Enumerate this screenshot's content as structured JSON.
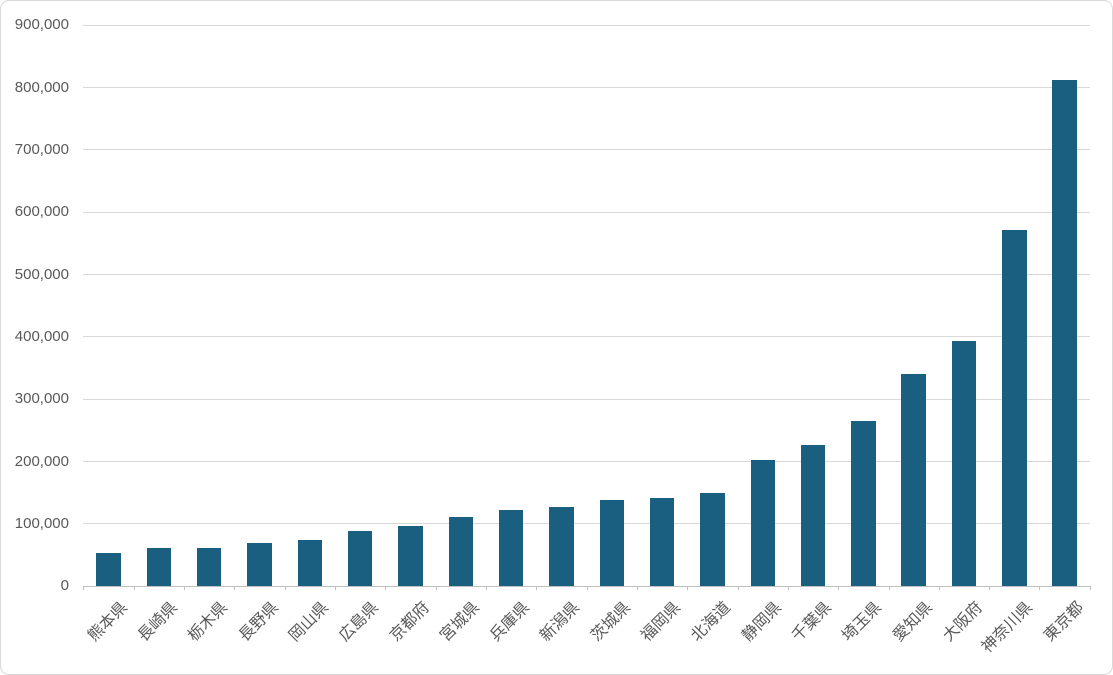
{
  "window": {
    "background": "#FFFFFF",
    "border_color": "#D9D9D9"
  },
  "chart_data": {
    "type": "bar",
    "title": "",
    "xlabel": "",
    "ylabel": "",
    "categories": [
      "熊本県",
      "長崎県",
      "栃木県",
      "長野県",
      "岡山県",
      "広島県",
      "京都府",
      "宮城県",
      "兵庫県",
      "新潟県",
      "茨城県",
      "福岡県",
      "北海道",
      "静岡県",
      "千葉県",
      "埼玉県",
      "愛知県",
      "大阪府",
      "神奈川県",
      "東京都"
    ],
    "values": [
      53000,
      61000,
      61000,
      70000,
      75000,
      89000,
      96000,
      111000,
      122000,
      127000,
      138000,
      142000,
      150000,
      202000,
      227000,
      265000,
      340000,
      393000,
      572000,
      812000
    ],
    "ylim": [
      0,
      900000
    ],
    "y_tick_step": 100000,
    "y_tick_labels": [
      "0",
      "100,000",
      "200,000",
      "300,000",
      "400,000",
      "500,000",
      "600,000",
      "700,000",
      "800,000",
      "900,000"
    ],
    "grid": true,
    "legend": "none",
    "x_label_rotation_deg": 45,
    "colors": {
      "bar": "#1B5F80",
      "gridline": "#D9D9D9",
      "axis_line": "#BFBFBF",
      "label_text": "#595959"
    }
  }
}
